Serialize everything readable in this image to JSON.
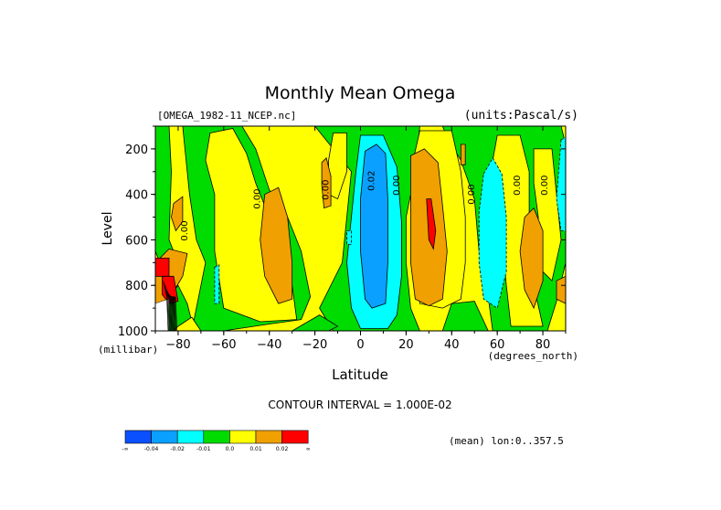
{
  "chart_data": {
    "type": "heatmap",
    "title": "Monthly Mean Omega",
    "file_label": "[OMEGA_1982-11_NCEP.nc]",
    "units_label": "(units:Pascal/s)",
    "xlabel": "Latitude",
    "x_units": "(degrees_north)",
    "ylabel": "Level",
    "y_units": "(millibar)",
    "xlim": [
      -90,
      90
    ],
    "ylim": [
      1000,
      100
    ],
    "x_ticks": [
      -80,
      -60,
      -40,
      -20,
      0,
      20,
      40,
      60,
      80
    ],
    "y_ticks": [
      200,
      400,
      600,
      800,
      1000
    ],
    "contour_interval_text": "CONTOUR INTERVAL = 1.000E-02",
    "mean_text": "(mean) lon:0..357.5",
    "contour_labels": [
      {
        "text": "0.00",
        "lat": -76,
        "level": 560
      },
      {
        "text": "0.00",
        "lat": -44,
        "level": 420
      },
      {
        "text": "0.00",
        "lat": -14,
        "level": 380
      },
      {
        "text": "0.02",
        "lat": 6,
        "level": 340
      },
      {
        "text": "0.00",
        "lat": 17,
        "level": 360
      },
      {
        "text": "0.00",
        "lat": 50,
        "level": 400
      },
      {
        "text": "0.00",
        "lat": 70,
        "level": 360
      },
      {
        "text": "0.00",
        "lat": 82,
        "level": 360
      }
    ],
    "legend": {
      "colors": [
        "#0a50ff",
        "#0aa0ff",
        "#00ffff",
        "#00dc00",
        "#ffff00",
        "#f0a000",
        "#ff0000"
      ],
      "labels": [
        "-∞",
        "-0.04",
        "-0.02",
        "-0.01",
        "0.0",
        "0.01",
        "0.02",
        "∞"
      ]
    },
    "colors": {
      "neg2": "#0aa0ff",
      "neg1": "#00ffff",
      "zero": "#00dc00",
      "pos1": "#ffff00",
      "pos2": "#f0a000",
      "pos3": "#ff0000",
      "line": "#000000"
    }
  }
}
